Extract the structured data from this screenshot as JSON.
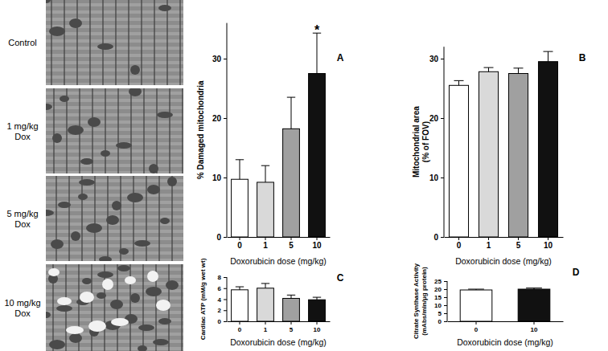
{
  "micrograph_labels": [
    [
      "Control"
    ],
    [
      "1 mg/kg",
      "Dox"
    ],
    [
      "5 mg/kg",
      "Dox"
    ],
    [
      "10 mg/kg",
      "Dox"
    ]
  ],
  "chart_data": [
    {
      "type": "bar",
      "title": "A",
      "categories": [
        "0",
        "1",
        "5",
        "10"
      ],
      "values": [
        9.7,
        9.2,
        18.2,
        27.5
      ],
      "errors": [
        3.3,
        2.8,
        5.3,
        6.8
      ],
      "colors": [
        "#ffffff",
        "#d9d9d9",
        "#a0a0a0",
        "#111111"
      ],
      "xlabel": "Doxorubicin dose (mg/kg)",
      "ylabel": "% Damaged mitochondria",
      "ylim": [
        0,
        36
      ],
      "yticks": [
        0,
        10,
        20,
        30
      ],
      "annotations": [
        {
          "text": "*",
          "category": "10"
        }
      ]
    },
    {
      "type": "bar",
      "title": "B",
      "categories": [
        "0",
        "1",
        "5",
        "10"
      ],
      "values": [
        25.5,
        27.8,
        27.5,
        29.5
      ],
      "errors": [
        0.8,
        0.7,
        0.9,
        1.7
      ],
      "colors": [
        "#ffffff",
        "#d9d9d9",
        "#a0a0a0",
        "#111111"
      ],
      "xlabel": "Doxorubicin dose (mg/kg)",
      "ylabel": [
        "Mitochondrial area",
        "(% of FOV)"
      ],
      "ylim": [
        0,
        32
      ],
      "yticks": [
        0,
        10,
        20,
        30
      ]
    },
    {
      "type": "bar",
      "title": "C",
      "categories": [
        "0",
        "1",
        "5",
        "10"
      ],
      "values": [
        5.7,
        6.0,
        4.15,
        3.9
      ],
      "errors": [
        0.55,
        0.85,
        0.6,
        0.45
      ],
      "colors": [
        "#ffffff",
        "#d9d9d9",
        "#a0a0a0",
        "#111111"
      ],
      "xlabel": "Doxorubicin dose (mg/kg)",
      "ylabel": "Cardiac ATP (mM/g wet wt)",
      "ylim": [
        0,
        8
      ],
      "yticks": [
        0,
        2,
        4,
        6,
        8
      ]
    },
    {
      "type": "bar",
      "title": "D",
      "categories": [
        "0",
        "10"
      ],
      "values": [
        19.5,
        20.0
      ],
      "errors": [
        0.5,
        0.7
      ],
      "colors": [
        "#ffffff",
        "#111111"
      ],
      "xlabel": "Doxorubicin dose (mg/kg)",
      "ylabel": [
        "Citrate Synthase Activity",
        "(mAbs/min/μg protein)"
      ],
      "ylim": [
        0,
        25
      ],
      "yticks": [
        0,
        5,
        10,
        15,
        20,
        25
      ]
    }
  ]
}
